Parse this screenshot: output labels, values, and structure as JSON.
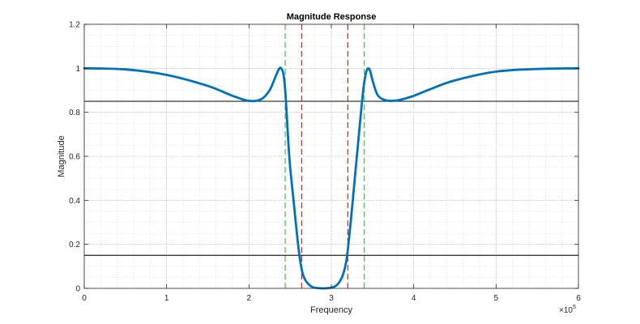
{
  "chart_data": {
    "type": "line",
    "title": "Magnitude Response",
    "xlabel": "Frequency",
    "ylabel": "Magnitude",
    "x_exponent_label": "×10",
    "x_exponent_power": "5",
    "xlim": [
      0,
      600000
    ],
    "ylim": [
      0,
      1.2
    ],
    "grid": "major and minor dotted",
    "x_ticks": [
      0,
      100000,
      200000,
      300000,
      400000,
      500000,
      600000
    ],
    "x_tick_labels": [
      "0",
      "1",
      "2",
      "3",
      "4",
      "5",
      "6"
    ],
    "y_ticks": [
      0,
      0.2,
      0.4,
      0.6,
      0.8,
      1.0,
      1.2
    ],
    "y_tick_labels": [
      "0",
      "0.2",
      "0.4",
      "0.6",
      "0.8",
      "1",
      "1.2"
    ],
    "series": [
      {
        "color": "#0072BD",
        "x": [
          0,
          50000,
          100000,
          150000,
          180000,
          200000,
          215000,
          225000,
          232000,
          237000,
          240000,
          242000,
          244000,
          246000,
          248000,
          250000,
          253000,
          256000,
          259000,
          262000,
          265000,
          268000,
          272000,
          276000,
          280000,
          285000,
          290000,
          295000,
          300000,
          305000,
          310000,
          314000,
          318000,
          321000,
          324000,
          327000,
          330000,
          333000,
          336000,
          339000,
          341000,
          343000,
          345000,
          347000,
          349000,
          352000,
          356000,
          362000,
          372000,
          385000,
          400000,
          420000,
          450000,
          500000,
          550000,
          600000
        ],
        "y": [
          1.0,
          0.995,
          0.97,
          0.92,
          0.875,
          0.852,
          0.86,
          0.9,
          0.96,
          1.0,
          0.995,
          0.97,
          0.9,
          0.78,
          0.65,
          0.55,
          0.44,
          0.33,
          0.22,
          0.13,
          0.07,
          0.04,
          0.02,
          0.008,
          0.003,
          0.001,
          0.0,
          0.001,
          0.003,
          0.01,
          0.03,
          0.06,
          0.12,
          0.21,
          0.32,
          0.44,
          0.56,
          0.68,
          0.8,
          0.91,
          0.96,
          0.99,
          1.0,
          0.99,
          0.96,
          0.92,
          0.88,
          0.86,
          0.852,
          0.858,
          0.875,
          0.905,
          0.945,
          0.985,
          0.997,
          1.0
        ]
      }
    ],
    "hlines": [
      {
        "y": 0.85,
        "color": "#222222",
        "style": "solid"
      },
      {
        "y": 0.15,
        "color": "#222222",
        "style": "solid"
      }
    ],
    "vlines": [
      {
        "x": 244000,
        "color": "#33cc33",
        "style": "dashed"
      },
      {
        "x": 264000,
        "color": "#dd2222",
        "style": "dashed"
      },
      {
        "x": 320000,
        "color": "#dd2222",
        "style": "dashed"
      },
      {
        "x": 340000,
        "color": "#33cc33",
        "style": "dashed"
      }
    ]
  }
}
